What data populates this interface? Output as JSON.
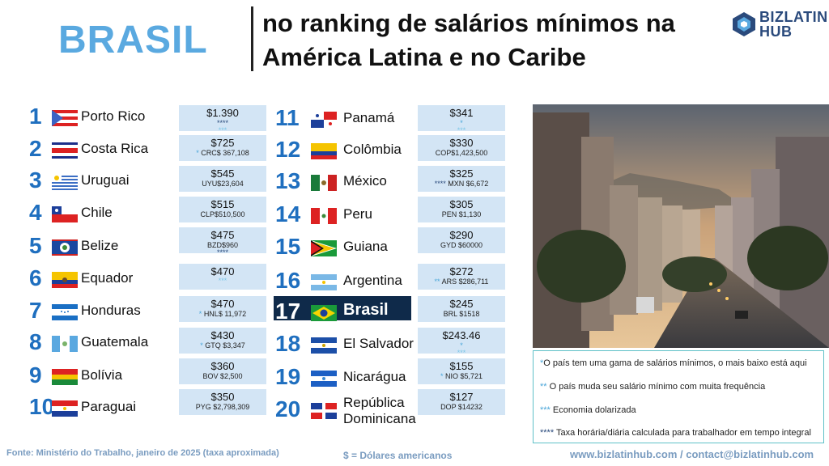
{
  "title": {
    "brasil": "BRASIL",
    "headline_line1": "no ranking de salários mínimos na",
    "headline_line2": "América Latina e no Caribe"
  },
  "logo": {
    "line1": "BIZ",
    "line1b": "LATIN",
    "line2": "HUB"
  },
  "rankings": [
    {
      "rank": "1",
      "country": "Porto Rico",
      "usd": "$1.390",
      "local": "",
      "stars": "****",
      "stars2": "***"
    },
    {
      "rank": "2",
      "country": "Costa Rica",
      "usd": "$725",
      "local": "CRC$ 367,108",
      "stars": "*",
      "stars2": ""
    },
    {
      "rank": "3",
      "country": "Uruguai",
      "usd": "$545",
      "local": "UYU$23,604",
      "stars": "",
      "stars2": ""
    },
    {
      "rank": "4",
      "country": "Chile",
      "usd": "$515",
      "local": "CLP$510,500",
      "stars": "",
      "stars2": ""
    },
    {
      "rank": "5",
      "country": "Belize",
      "usd": "$475",
      "local": "BZD$960",
      "stars": "",
      "stars2": "****"
    },
    {
      "rank": "6",
      "country": "Equador",
      "usd": "$470",
      "local": "",
      "stars": "",
      "stars2": "***"
    },
    {
      "rank": "7",
      "country": "Honduras",
      "usd": "$470",
      "local": "HNL$ 11,972",
      "stars": "*",
      "stars2": ""
    },
    {
      "rank": "8",
      "country": "Guatemala",
      "usd": "$430",
      "local": "GTQ $3,347",
      "stars": "*",
      "stars2": ""
    },
    {
      "rank": "9",
      "country": "Bolívia",
      "usd": "$360",
      "local": "BOV $2,500",
      "stars": "",
      "stars2": ""
    },
    {
      "rank": "10",
      "country": "Paraguai",
      "usd": "$350",
      "local": "PYG $2,798,309",
      "stars": "",
      "stars2": ""
    },
    {
      "rank": "11",
      "country": "Panamá",
      "usd": "$341",
      "local": "",
      "stars": "*",
      "stars2": "***"
    },
    {
      "rank": "12",
      "country": "Colômbia",
      "usd": "$330",
      "local": "COP$1,423,500",
      "stars": "",
      "stars2": ""
    },
    {
      "rank": "13",
      "country": "México",
      "usd": "$325",
      "local": "MXN $6,672",
      "stars": "****",
      "stars2": ""
    },
    {
      "rank": "14",
      "country": "Peru",
      "usd": "$305",
      "local": "PEN $1,130",
      "stars": "",
      "stars2": ""
    },
    {
      "rank": "15",
      "country": "Guiana",
      "usd": "$290",
      "local": "GYD $60000",
      "stars": "",
      "stars2": ""
    },
    {
      "rank": "16",
      "country": "Argentina",
      "usd": "$272",
      "local": "ARS $286,711",
      "stars": "**",
      "stars2": ""
    },
    {
      "rank": "17",
      "country": "Brasil",
      "usd": "$245",
      "local": "BRL $1518",
      "stars": "",
      "stars2": ""
    },
    {
      "rank": "18",
      "country": "El Salvador",
      "usd": "$243.46",
      "local": "",
      "stars": "*",
      "stars2": "***"
    },
    {
      "rank": "19",
      "country": "Nicarágua",
      "usd": "$155",
      "local": "NIO $5,721",
      "stars": "*",
      "stars2": ""
    },
    {
      "rank": "20",
      "country": "República Dominicana",
      "country_line1": "República",
      "country_line2": "Dominicana",
      "usd": "$127",
      "local": "DOP $14232",
      "stars": "",
      "stars2": ""
    }
  ],
  "legend": [
    {
      "stars": "*",
      "text": "O país tem uma gama de salários mínimos, o mais baixo está aqui"
    },
    {
      "stars": "**",
      "text": "O país muda seu salário mínimo com muita frequência"
    },
    {
      "stars": "***",
      "text": "Economia dolarizada"
    },
    {
      "stars": "****",
      "text": "Taxa horária/diária calculada para trabalhador em tempo integral"
    }
  ],
  "footer": {
    "source": "Fonte: Ministério do Trabalho, janeiro de 2025 (taxa aproximada)",
    "currency": "$ = Dólares americanos",
    "contact": "www.bizlatinhub.com / contact@bizlatinhub.com"
  },
  "colors": {
    "accent": "#1f6fbf",
    "title": "#5aa9e0",
    "box": "#d3e5f5",
    "highlight": "#0f2a4a"
  }
}
